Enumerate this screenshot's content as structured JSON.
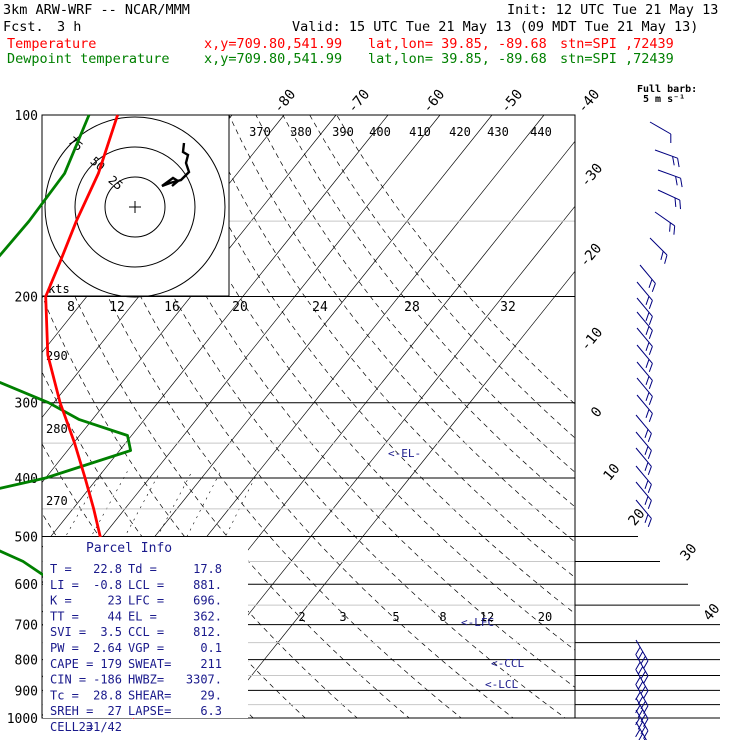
{
  "header": {
    "model": "3km ARW-WRF -- NCAR/MMM",
    "fcst_label": "Fcst.",
    "fcst_value": "3 h",
    "init": "Init: 12 UTC Tue 21 May 13",
    "valid": "Valid: 15 UTC Tue 21 May 13 (09 MDT Tue 21 May 13)",
    "temp_label": "Temperature",
    "dew_label": "Dewpoint temperature",
    "xy": "x,y=709.80,541.99",
    "latlon": "lat,lon= 39.85, -89.68",
    "stn": "stn=SPI ,72439",
    "temp_color": "#ff0000",
    "dew_color": "#008000"
  },
  "barb_legend": {
    "line1": "Full barb:",
    "line2": "5 m s⁻¹"
  },
  "chart_data": {
    "type": "skew-t log-p sounding",
    "pressure_levels": [
      100,
      200,
      300,
      400,
      500,
      600,
      700,
      800,
      900,
      1000
    ],
    "ylim": [
      1000,
      100
    ],
    "isotherm_labels": [
      "-80",
      "-70",
      "-60",
      "-50",
      "-40",
      "-30",
      "-20",
      "-10",
      "0",
      "10",
      "20",
      "30",
      "40"
    ],
    "theta_labels_top": [
      "370",
      "380",
      "390",
      "400",
      "410",
      "420",
      "430",
      "440"
    ],
    "theta_labels_left": [
      "290",
      "280",
      "270"
    ],
    "mixing_ratio_labels_mid": [
      "2",
      "3",
      "5",
      "8",
      "12",
      "20"
    ],
    "mixing_ratio_labels_upper": [
      "8",
      "12",
      "16",
      "20",
      "24",
      "28",
      "32"
    ],
    "temperature_series": {
      "name": "Temperature",
      "pressure": [
        1000,
        970,
        930,
        900,
        880,
        850,
        800,
        750,
        700,
        650,
        600,
        550,
        500,
        450,
        400,
        350,
        300,
        250,
        200,
        175,
        150,
        125,
        100
      ],
      "temperature": [
        24,
        20.5,
        18.6,
        19.4,
        19.2,
        17.5,
        13.5,
        9.5,
        5,
        0.5,
        -4.5,
        -6.6,
        -10.5,
        -16,
        -22.4,
        -29.8,
        -38.8,
        -48.5,
        -57.9,
        -60.5,
        -63.6,
        -66.7,
        -72
      ]
    },
    "dewpoint_series": {
      "name": "Dewpoint temperature",
      "pressure": [
        975,
        950,
        930,
        900,
        850,
        800,
        750,
        700,
        650,
        600,
        550,
        500,
        450,
        400,
        360,
        340,
        320,
        300,
        270,
        250,
        220,
        200,
        175,
        150,
        125,
        100
      ],
      "dewpoint": [
        17.8,
        17.5,
        13.5,
        10.6,
        6.9,
        3.4,
        1.8,
        -2,
        -6.5,
        -11.5,
        -21.5,
        -36,
        -51.4,
        -30,
        -17.9,
        -20.8,
        -32.5,
        -41,
        -58,
        -68,
        -75,
        -76.4,
        -73.1,
        -72.7,
        -73.2,
        -77.5
      ]
    },
    "markers": [
      "<-EL-",
      "<-LFC",
      "<-CCL",
      "<-LCL"
    ],
    "hodograph": {
      "kts_label": "kts",
      "ring_labels": [
        "25",
        "50",
        "75"
      ]
    },
    "parcel_info": {
      "title": "Parcel Info",
      "rows": [
        {
          "a": "T  =",
          "b": "22.8",
          "c": "Td =",
          "d": "17.8"
        },
        {
          "a": "LI =",
          "b": "-0.8",
          "c": "LCL =",
          "d": "881."
        },
        {
          "a": "K  =",
          "b": "23",
          "c": "LFC =",
          "d": "696."
        },
        {
          "a": "TT =",
          "b": "44",
          "c": "EL  =",
          "d": "362."
        },
        {
          "a": "SVI =",
          "b": "3.5",
          "c": "CCL =",
          "d": "812."
        },
        {
          "a": "PW =",
          "b": "2.64",
          "c": "VGP =",
          "d": "0.1"
        },
        {
          "a": "CAPE =",
          "b": "179",
          "c": "SWEAT=",
          "d": "211"
        },
        {
          "a": "CIN =",
          "b": "-186",
          "c": "HWBZ=",
          "d": "3307."
        },
        {
          "a": "Tc =",
          "b": "28.8",
          "c": "SHEAR=",
          "d": "29."
        },
        {
          "a": "SREH =",
          "b": "27",
          "c": "LAPSE=",
          "d": "6.3"
        },
        {
          "a": "CELL =",
          "b": "231/42",
          "c": "",
          "d": ""
        }
      ]
    }
  }
}
